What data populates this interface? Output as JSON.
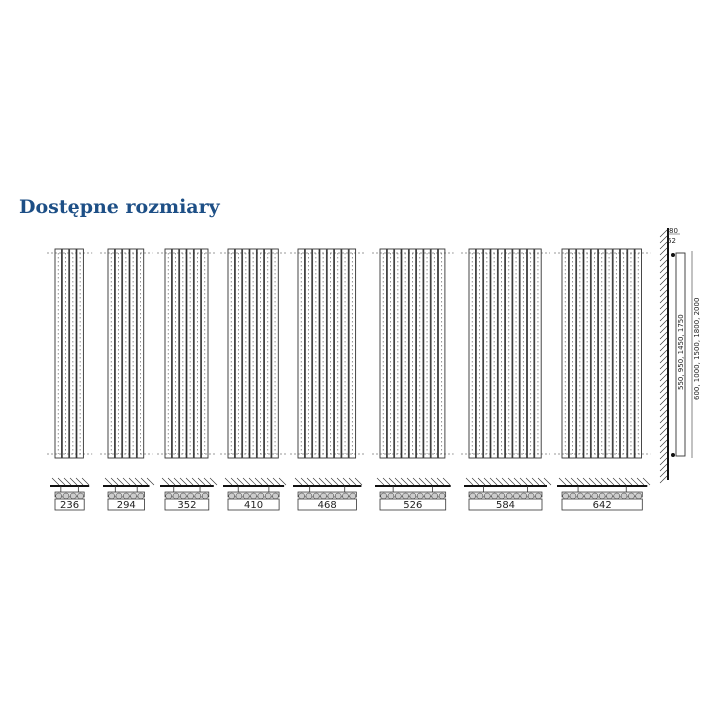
{
  "title": "Dostępne rozmiary",
  "colors": {
    "title": "#1d4f86",
    "line": "#333333"
  },
  "sizes": [
    {
      "width": "236",
      "tubes": 4
    },
    {
      "width": "294",
      "tubes": 5
    },
    {
      "width": "352",
      "tubes": 6
    },
    {
      "width": "410",
      "tubes": 7
    },
    {
      "width": "468",
      "tubes": 8
    },
    {
      "width": "526",
      "tubes": 9
    },
    {
      "width": "584",
      "tubes": 10
    },
    {
      "width": "642",
      "tubes": 11
    }
  ],
  "side_view": {
    "depth": "80",
    "offset": "62",
    "heights_inner": "550, 950, 1450, 1750",
    "heights_outer": "600, 1000, 1500, 1800, 2000"
  }
}
